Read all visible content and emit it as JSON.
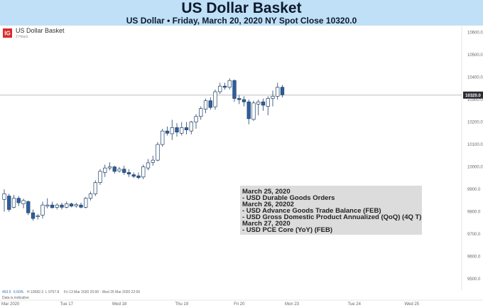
{
  "header": {
    "title": "US Dollar Basket",
    "subtitle": "US Dollar • Friday, March 20, 2020 NY Spot Close 10320.0"
  },
  "legend": {
    "logo_text": "IG",
    "symbol": "US Dollar Basket",
    "interval": "2 Hours"
  },
  "footer": {
    "vol_value": "453.5",
    "pct_value": "6.60%",
    "high": "H 10582.3",
    "low": "L 9757.8",
    "range": "Fri 13 Mar 2020 20:00 - Wed 25 Mar 2020 22:00",
    "source": "Data is indicative"
  },
  "annotation": {
    "lines": [
      "March 25, 2020",
      "- USD Durable Goods Orders",
      "March 26, 20202",
      "- USD Advance Goods Trade Balance (FEB)",
      "- USD Gross Domestic Product Annualized (QoQ) (4Q T)",
      "March 27, 2020",
      "- USD PCE Core (YoY) (FEB)"
    ]
  },
  "colors": {
    "header_bg": "#bfe0f6",
    "bullish": "#ffffff",
    "bearish": "#2e5f9e",
    "candle_outline": "#1f3f66",
    "price_line": "#a9a9a9",
    "price_tag": "#2b2b33",
    "logo": "#d92b2b",
    "annotation_bg": "#dcdcdc"
  },
  "chart_data": {
    "type": "candlestick",
    "title": "US Dollar Basket",
    "interval": "2 Hours",
    "last_price": 10320.0,
    "last_price_label": "10320.0",
    "ylim": [
      9450,
      10630
    ],
    "y_ticks": [
      9500,
      9600,
      9700,
      9800,
      9900,
      10000,
      10100,
      10200,
      10300,
      10400,
      10500,
      10600
    ],
    "y_tick_labels": [
      "9500.0",
      "9600.0",
      "9700.0",
      "9800.0",
      "9900.0",
      "10000.0",
      "10100.0",
      "10200.0",
      "10300.0",
      "10400.0",
      "10500.0",
      "10600.0"
    ],
    "x_tick_labels": [
      "Mar 2020",
      "Tue 17",
      "Wed 18",
      "Thu 19",
      "Fri 20",
      "Mon 23",
      "Tue 24",
      "Wed 25"
    ],
    "x_tick_index": [
      0,
      13,
      24,
      37,
      49,
      60,
      73,
      85
    ],
    "candles": [
      {
        "o": 9855,
        "h": 9900,
        "l": 9800,
        "c": 9880
      },
      {
        "o": 9870,
        "h": 9880,
        "l": 9800,
        "c": 9810
      },
      {
        "o": 9820,
        "h": 9875,
        "l": 9815,
        "c": 9860
      },
      {
        "o": 9860,
        "h": 9870,
        "l": 9825,
        "c": 9840
      },
      {
        "o": 9835,
        "h": 9858,
        "l": 9815,
        "c": 9850
      },
      {
        "o": 9845,
        "h": 9850,
        "l": 9785,
        "c": 9795
      },
      {
        "o": 9795,
        "h": 9810,
        "l": 9760,
        "c": 9770
      },
      {
        "o": 9778,
        "h": 9790,
        "l": 9765,
        "c": 9782
      },
      {
        "o": 9785,
        "h": 9845,
        "l": 9770,
        "c": 9830
      },
      {
        "o": 9825,
        "h": 9860,
        "l": 9815,
        "c": 9830
      },
      {
        "o": 9830,
        "h": 9845,
        "l": 9815,
        "c": 9818
      },
      {
        "o": 9820,
        "h": 9838,
        "l": 9810,
        "c": 9830
      },
      {
        "o": 9830,
        "h": 9840,
        "l": 9810,
        "c": 9820
      },
      {
        "o": 9820,
        "h": 9845,
        "l": 9815,
        "c": 9835
      },
      {
        "o": 9835,
        "h": 9840,
        "l": 9820,
        "c": 9825
      },
      {
        "o": 9826,
        "h": 9840,
        "l": 9818,
        "c": 9832
      },
      {
        "o": 9830,
        "h": 9840,
        "l": 9815,
        "c": 9820
      },
      {
        "o": 9820,
        "h": 9865,
        "l": 9815,
        "c": 9860
      },
      {
        "o": 9860,
        "h": 9890,
        "l": 9850,
        "c": 9880
      },
      {
        "o": 9880,
        "h": 9940,
        "l": 9870,
        "c": 9930
      },
      {
        "o": 9930,
        "h": 9990,
        "l": 9920,
        "c": 9980
      },
      {
        "o": 9975,
        "h": 10010,
        "l": 9955,
        "c": 9995
      },
      {
        "o": 9995,
        "h": 10020,
        "l": 9985,
        "c": 10000
      },
      {
        "o": 10000,
        "h": 10005,
        "l": 9970,
        "c": 9980
      },
      {
        "o": 9982,
        "h": 10000,
        "l": 9975,
        "c": 9990
      },
      {
        "o": 9990,
        "h": 10005,
        "l": 9965,
        "c": 9975
      },
      {
        "o": 9975,
        "h": 9990,
        "l": 9955,
        "c": 9968
      },
      {
        "o": 9965,
        "h": 9975,
        "l": 9950,
        "c": 9958
      },
      {
        "o": 9960,
        "h": 9975,
        "l": 9945,
        "c": 9952
      },
      {
        "o": 9955,
        "h": 10010,
        "l": 9945,
        "c": 10000
      },
      {
        "o": 9995,
        "h": 10035,
        "l": 9985,
        "c": 10018
      },
      {
        "o": 10020,
        "h": 10050,
        "l": 10005,
        "c": 10030
      },
      {
        "o": 10030,
        "h": 10110,
        "l": 10025,
        "c": 10100
      },
      {
        "o": 10100,
        "h": 10170,
        "l": 10090,
        "c": 10160
      },
      {
        "o": 10160,
        "h": 10180,
        "l": 10140,
        "c": 10150
      },
      {
        "o": 10148,
        "h": 10210,
        "l": 10120,
        "c": 10175
      },
      {
        "o": 10175,
        "h": 10195,
        "l": 10135,
        "c": 10155
      },
      {
        "o": 10150,
        "h": 10200,
        "l": 10140,
        "c": 10175
      },
      {
        "o": 10175,
        "h": 10200,
        "l": 10145,
        "c": 10165
      },
      {
        "o": 10160,
        "h": 10205,
        "l": 10145,
        "c": 10200
      },
      {
        "o": 10200,
        "h": 10235,
        "l": 10170,
        "c": 10225
      },
      {
        "o": 10225,
        "h": 10270,
        "l": 10210,
        "c": 10260
      },
      {
        "o": 10258,
        "h": 10305,
        "l": 10240,
        "c": 10295
      },
      {
        "o": 10295,
        "h": 10310,
        "l": 10255,
        "c": 10265
      },
      {
        "o": 10268,
        "h": 10345,
        "l": 10255,
        "c": 10335
      },
      {
        "o": 10335,
        "h": 10375,
        "l": 10325,
        "c": 10360
      },
      {
        "o": 10360,
        "h": 10375,
        "l": 10345,
        "c": 10355
      },
      {
        "o": 10355,
        "h": 10395,
        "l": 10345,
        "c": 10385
      },
      {
        "o": 10385,
        "h": 10390,
        "l": 10290,
        "c": 10305
      },
      {
        "o": 10305,
        "h": 10320,
        "l": 10280,
        "c": 10300
      },
      {
        "o": 10300,
        "h": 10315,
        "l": 10270,
        "c": 10290
      },
      {
        "o": 10290,
        "h": 10300,
        "l": 10190,
        "c": 10215
      },
      {
        "o": 10212,
        "h": 10295,
        "l": 10205,
        "c": 10285
      },
      {
        "o": 10280,
        "h": 10300,
        "l": 10230,
        "c": 10290
      },
      {
        "o": 10290,
        "h": 10305,
        "l": 10250,
        "c": 10275
      },
      {
        "o": 10270,
        "h": 10315,
        "l": 10230,
        "c": 10305
      },
      {
        "o": 10305,
        "h": 10340,
        "l": 10270,
        "c": 10315
      },
      {
        "o": 10315,
        "h": 10375,
        "l": 10300,
        "c": 10355
      },
      {
        "o": 10355,
        "h": 10365,
        "l": 10310,
        "c": 10322
      }
    ]
  }
}
